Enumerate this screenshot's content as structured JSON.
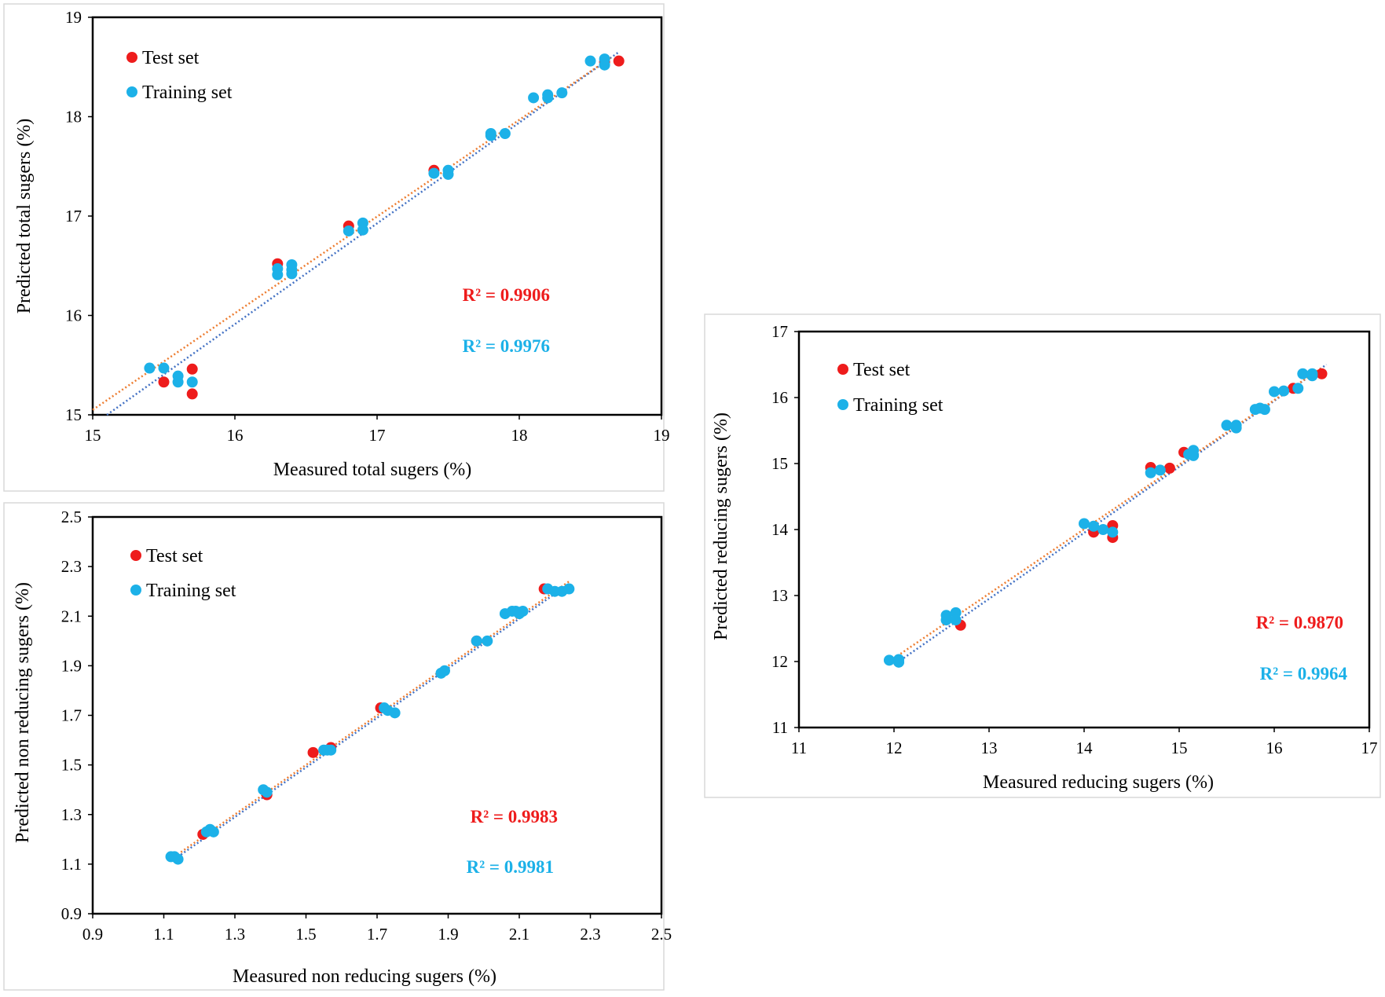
{
  "colors": {
    "test": "#ee1c1c",
    "training": "#1cb1e8",
    "test_trend": "#ed7d31",
    "training_trend": "#4472c4"
  },
  "chart_data": [
    {
      "id": "total",
      "type": "scatter",
      "xlabel": "Measured total sugers (%)",
      "ylabel": "Predicted total sugers (%)",
      "xlim": [
        15,
        19
      ],
      "ylim": [
        15,
        19
      ],
      "xticks": [
        "15",
        "16",
        "17",
        "18",
        "19"
      ],
      "yticks": [
        "15",
        "16",
        "17",
        "18",
        "19"
      ],
      "legend": {
        "test": "Test set",
        "training": "Training set"
      },
      "r2": {
        "test": "R² = 0.9906",
        "training": "R² = 0.9976"
      },
      "trend": {
        "test": [
          [
            15.0,
            15.05
          ],
          [
            18.65,
            18.6
          ]
        ],
        "training": [
          [
            15.1,
            15.0
          ],
          [
            18.7,
            18.65
          ]
        ]
      },
      "series": [
        {
          "name": "Test set",
          "points": [
            [
              15.5,
              15.33
            ],
            [
              15.7,
              15.46
            ],
            [
              15.7,
              15.21
            ],
            [
              16.3,
              16.52
            ],
            [
              16.8,
              16.9
            ],
            [
              17.4,
              17.46
            ],
            [
              18.7,
              18.56
            ],
            [
              18.6,
              18.55
            ]
          ]
        },
        {
          "name": "Training set",
          "points": [
            [
              15.4,
              15.47
            ],
            [
              15.5,
              15.47
            ],
            [
              15.6,
              15.39
            ],
            [
              15.6,
              15.33
            ],
            [
              15.7,
              15.33
            ],
            [
              16.3,
              16.47
            ],
            [
              16.3,
              16.41
            ],
            [
              16.4,
              16.51
            ],
            [
              16.4,
              16.46
            ],
            [
              16.4,
              16.42
            ],
            [
              16.8,
              16.85
            ],
            [
              16.9,
              16.93
            ],
            [
              16.9,
              16.86
            ],
            [
              17.4,
              17.43
            ],
            [
              17.5,
              17.46
            ],
            [
              17.5,
              17.42
            ],
            [
              17.8,
              17.83
            ],
            [
              17.8,
              17.81
            ],
            [
              17.9,
              17.83
            ],
            [
              18.1,
              18.19
            ],
            [
              18.2,
              18.22
            ],
            [
              18.2,
              18.19
            ],
            [
              18.3,
              18.24
            ],
            [
              18.5,
              18.56
            ],
            [
              18.6,
              18.58
            ],
            [
              18.6,
              18.52
            ]
          ]
        }
      ]
    },
    {
      "id": "reducing",
      "type": "scatter",
      "xlabel": "Measured reducing sugers (%)",
      "ylabel": "Predicted reducing sugers (%)",
      "xlim": [
        11,
        17
      ],
      "ylim": [
        11,
        17
      ],
      "xticks": [
        "11",
        "12",
        "13",
        "14",
        "15",
        "16",
        "17"
      ],
      "yticks": [
        "11",
        "12",
        "13",
        "14",
        "15",
        "16",
        "17"
      ],
      "legend": {
        "test": "Test set",
        "training": "Training set"
      },
      "r2": {
        "test": "R² = 0.9870",
        "training": "R² = 0.9964"
      },
      "trend": {
        "test": [
          [
            12.0,
            12.05
          ],
          [
            16.5,
            16.45
          ]
        ],
        "training": [
          [
            12.0,
            11.95
          ],
          [
            16.55,
            16.5
          ]
        ]
      },
      "series": [
        {
          "name": "Test set",
          "points": [
            [
              12.7,
              12.55
            ],
            [
              14.1,
              13.96
            ],
            [
              14.3,
              14.06
            ],
            [
              14.3,
              13.88
            ],
            [
              14.7,
              14.94
            ],
            [
              14.9,
              14.93
            ],
            [
              15.05,
              15.17
            ],
            [
              16.2,
              16.14
            ],
            [
              16.5,
              16.36
            ]
          ]
        },
        {
          "name": "Training set",
          "points": [
            [
              11.95,
              12.02
            ],
            [
              12.05,
              12.03
            ],
            [
              12.05,
              11.99
            ],
            [
              12.55,
              12.7
            ],
            [
              12.55,
              12.63
            ],
            [
              12.65,
              12.74
            ],
            [
              12.65,
              12.63
            ],
            [
              14.0,
              14.09
            ],
            [
              14.1,
              14.05
            ],
            [
              14.2,
              14.0
            ],
            [
              14.3,
              13.96
            ],
            [
              14.7,
              14.86
            ],
            [
              14.8,
              14.9
            ],
            [
              15.1,
              15.14
            ],
            [
              15.15,
              15.2
            ],
            [
              15.15,
              15.12
            ],
            [
              15.5,
              15.58
            ],
            [
              15.6,
              15.58
            ],
            [
              15.6,
              15.54
            ],
            [
              15.8,
              15.82
            ],
            [
              15.85,
              15.84
            ],
            [
              15.9,
              15.82
            ],
            [
              16.0,
              16.09
            ],
            [
              16.1,
              16.1
            ],
            [
              16.25,
              16.14
            ],
            [
              16.3,
              16.36
            ],
            [
              16.4,
              16.36
            ],
            [
              16.4,
              16.33
            ]
          ]
        }
      ]
    },
    {
      "id": "non-reducing",
      "type": "scatter",
      "xlabel": "Measured non reducing sugers (%)",
      "ylabel": "Predicted non reducing sugers (%)",
      "xlim": [
        0.9,
        2.5
      ],
      "ylim": [
        0.9,
        2.5
      ],
      "xticks": [
        "0.9",
        "1.1",
        "1.3",
        "1.5",
        "1.7",
        "1.9",
        "2.1",
        "2.3",
        "2.5"
      ],
      "yticks": [
        "0.9",
        "1.1",
        "1.3",
        "1.5",
        "1.7",
        "1.9",
        "2.1",
        "2.3",
        "2.5"
      ],
      "legend": {
        "test": "Test set",
        "training": "Training set"
      },
      "r2": {
        "test": "R² = 0.9983",
        "training": "R² = 0.9981"
      },
      "trend": {
        "test": [
          [
            1.13,
            1.13
          ],
          [
            2.24,
            2.24
          ]
        ],
        "training": [
          [
            1.13,
            1.12
          ],
          [
            2.24,
            2.23
          ]
        ]
      },
      "series": [
        {
          "name": "Test set",
          "points": [
            [
              1.21,
              1.22
            ],
            [
              1.39,
              1.38
            ],
            [
              1.52,
              1.55
            ],
            [
              1.57,
              1.57
            ],
            [
              1.71,
              1.73
            ],
            [
              1.98,
              2.0
            ],
            [
              2.17,
              2.21
            ]
          ]
        },
        {
          "name": "Training set",
          "points": [
            [
              1.12,
              1.13
            ],
            [
              1.13,
              1.13
            ],
            [
              1.14,
              1.12
            ],
            [
              1.22,
              1.23
            ],
            [
              1.23,
              1.24
            ],
            [
              1.24,
              1.23
            ],
            [
              1.38,
              1.4
            ],
            [
              1.39,
              1.39
            ],
            [
              1.55,
              1.56
            ],
            [
              1.56,
              1.56
            ],
            [
              1.57,
              1.56
            ],
            [
              1.72,
              1.73
            ],
            [
              1.73,
              1.72
            ],
            [
              1.75,
              1.71
            ],
            [
              1.88,
              1.87
            ],
            [
              1.89,
              1.88
            ],
            [
              1.98,
              2.0
            ],
            [
              2.01,
              2.0
            ],
            [
              2.06,
              2.11
            ],
            [
              2.08,
              2.12
            ],
            [
              2.09,
              2.12
            ],
            [
              2.1,
              2.11
            ],
            [
              2.11,
              2.12
            ],
            [
              2.18,
              2.21
            ],
            [
              2.2,
              2.2
            ],
            [
              2.22,
              2.2
            ],
            [
              2.24,
              2.21
            ]
          ]
        }
      ]
    }
  ]
}
